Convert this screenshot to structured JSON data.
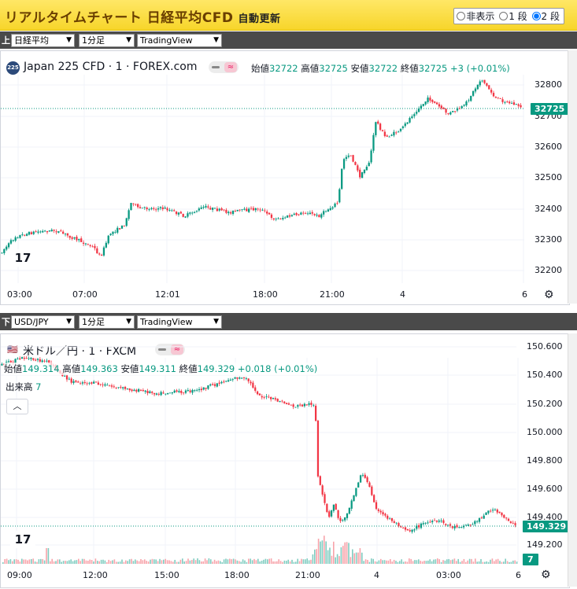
{
  "header": {
    "title": "リアルタイムチャート 日経平均CFD",
    "subtitle": "自動更新",
    "modes": [
      {
        "label": "非表示",
        "checked": false
      },
      {
        "label": "1 段",
        "checked": false
      },
      {
        "label": "2 段",
        "checked": true
      }
    ]
  },
  "top": {
    "label": "上",
    "symbol_select": "日経平均",
    "interval_select": "1分足",
    "provider_select": "TradingView",
    "badge": "225",
    "legend": "Japan 225 CFD · 1 · FOREX.com",
    "ohlc": {
      "o_label": "始値",
      "o": "32722",
      "h_label": "高値",
      "h": "32725",
      "l_label": "安値",
      "l": "32722",
      "c_label": "終値",
      "c": "32725",
      "chg": "+3 (+0.01%)"
    },
    "last_price": "32725",
    "y_ticks": [
      "32800",
      "32700",
      "32600",
      "32500",
      "32400",
      "32300",
      "32200"
    ],
    "x_ticks": [
      "03:00",
      "07:00",
      "12:01",
      "18:00",
      "21:00",
      "4",
      "6"
    ]
  },
  "bottom": {
    "label": "下",
    "symbol_select": "USD/JPY",
    "interval_select": "1分足",
    "provider_select": "TradingView",
    "legend": "米ドル／円 · 1 · FXCM",
    "ohlc": {
      "o_label": "始値",
      "o": "149.314",
      "h_label": "高値",
      "h": "149.363",
      "l_label": "安値",
      "l": "149.311",
      "c_label": "終値",
      "c": "149.329",
      "chg": "+0.018 (+0.01%)"
    },
    "volume_label": "出来高",
    "volume_value": "7",
    "last_price": "149.329",
    "volume_tag": "7",
    "y_ticks": [
      "150.600",
      "150.400",
      "150.200",
      "150.000",
      "149.800",
      "149.600",
      "149.400",
      "149.200"
    ],
    "x_ticks": [
      "09:00",
      "12:00",
      "15:00",
      "18:00",
      "21:00",
      "4",
      "03:00",
      "6"
    ]
  },
  "colors": {
    "up": "#089981",
    "down": "#f23645",
    "accent": "#ffd94a"
  },
  "icons": {
    "logo": "tradingview-logo-icon",
    "settings": "gear-icon",
    "collapse": "chevron-up-icon"
  }
}
